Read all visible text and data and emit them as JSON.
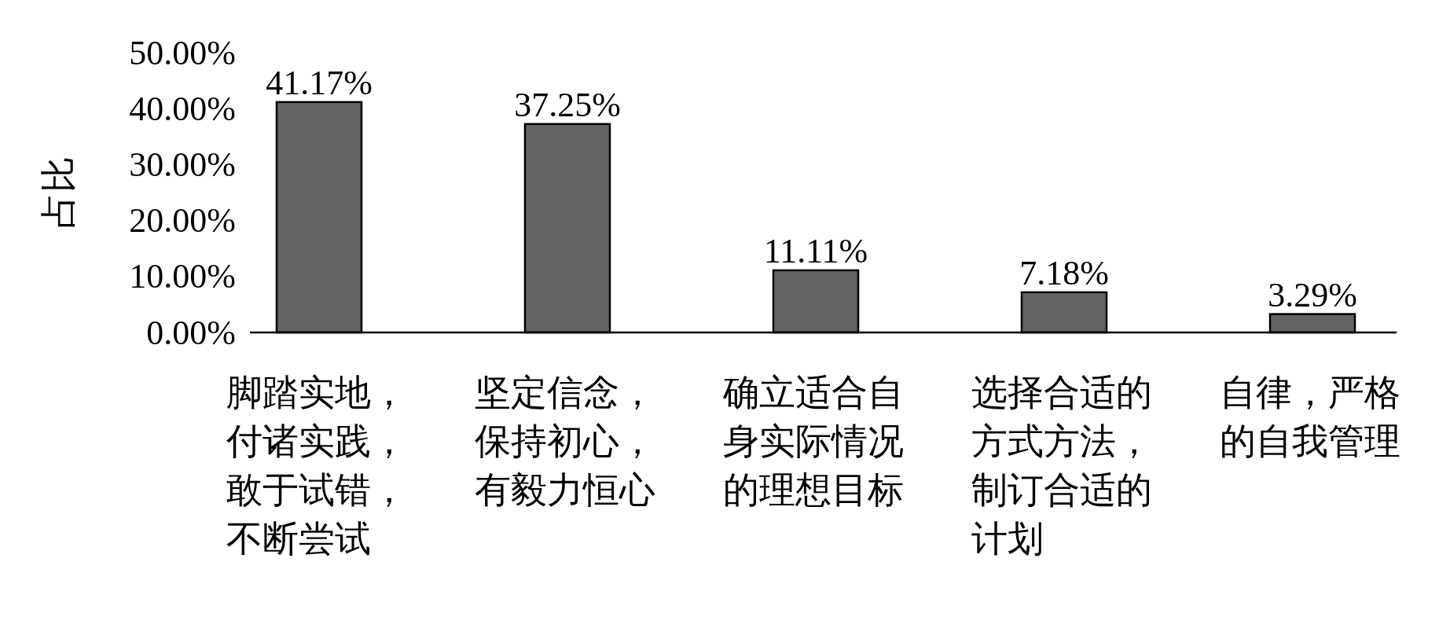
{
  "chart_data": {
    "type": "bar",
    "ylabel": "占比",
    "categories": [
      "脚踏实地，付诸实践，敢于试错，不断尝试",
      "坚定信念，保持初心，有毅力恒心",
      "确立适合自身实际情况的理想目标",
      "选择合适的方式方法，制订合适的计划",
      "自律，严格的自我管理"
    ],
    "values": [
      41.17,
      37.25,
      11.11,
      7.18,
      3.29
    ],
    "value_labels": [
      "41.17%",
      "37.25%",
      "11.11%",
      "7.18%",
      "3.29%"
    ],
    "color": "#656365",
    "ylim": [
      0,
      50
    ],
    "yticks": [
      {
        "value": 0,
        "label": "0.00%"
      },
      {
        "value": 10,
        "label": "10.00%"
      },
      {
        "value": 20,
        "label": "20.00%"
      },
      {
        "value": 30,
        "label": "30.00%"
      },
      {
        "value": 40,
        "label": "40.00%"
      },
      {
        "value": 50,
        "label": "50.00%"
      }
    ],
    "grid": false
  }
}
